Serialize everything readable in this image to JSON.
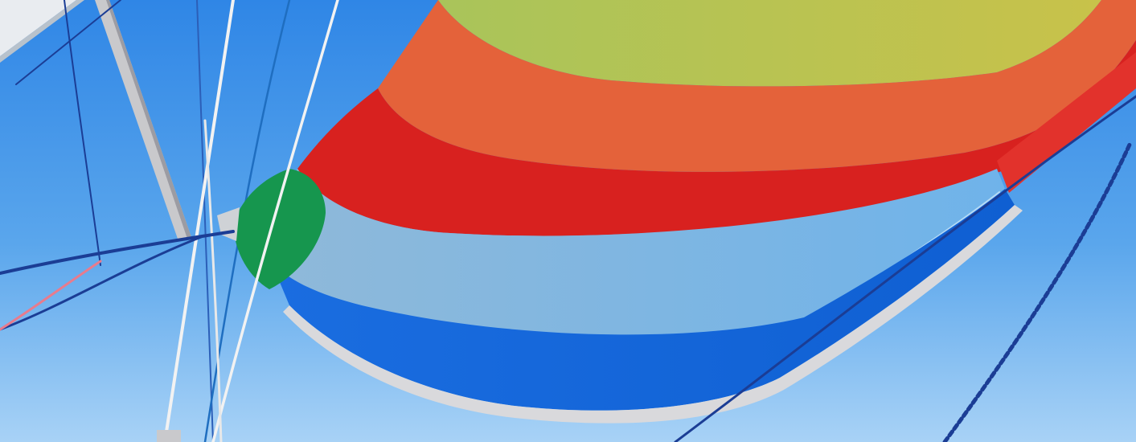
{
  "scene": {
    "sky_top": "#2f86e6",
    "sky_mid": "#5aa6ec",
    "sky_bottom": "#a8d2f6",
    "sail": {
      "yellow_green": "#b5c451",
      "orange": "#e4623a",
      "red": "#d8211f",
      "light_blue": "#7fb6e2",
      "blue": "#1468dc",
      "green": "#16964e",
      "foot_edge": "#d9d9dc"
    },
    "spar": "#c9c9cc",
    "rope_white": "#f2f2f2",
    "rope_navy": "#1b3d95",
    "rope_pink": "#e87b8d"
  }
}
